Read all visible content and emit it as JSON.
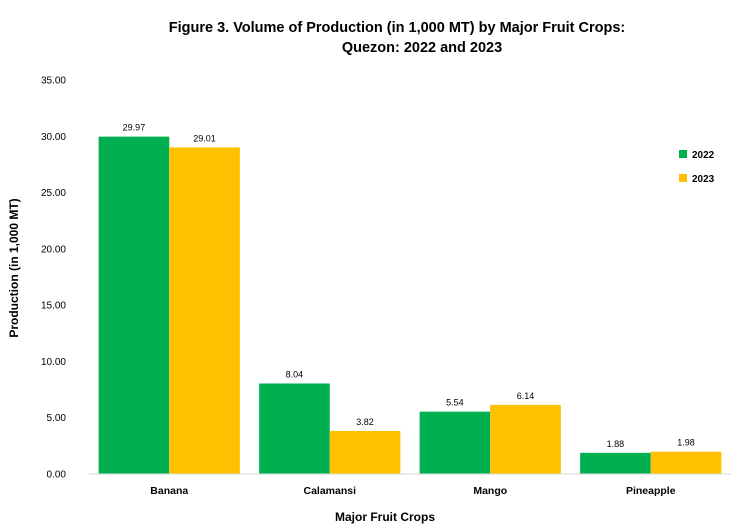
{
  "chart_data": {
    "type": "bar",
    "title_line1": "Figure 3. Volume of Production (in 1,000 MT) by Major Fruit Crops:",
    "title_line2": "Quezon: 2022 and 2023",
    "xlabel": "Major Fruit Crops",
    "ylabel": "Production (in 1,000 MT)",
    "categories": [
      "Banana",
      "Calamansi",
      "Mango",
      "Pineapple"
    ],
    "series": [
      {
        "name": "2022",
        "color": "#00B050",
        "values": [
          29.97,
          8.04,
          5.54,
          1.88
        ],
        "labels": [
          "29.97",
          "8.04",
          "5.54",
          "1.88"
        ]
      },
      {
        "name": "2023",
        "color": "#FFC000",
        "values": [
          29.01,
          3.82,
          6.14,
          1.98
        ],
        "labels": [
          "29.01",
          "3.82",
          "6.14",
          "1.98"
        ]
      }
    ],
    "ylim": [
      0,
      35
    ],
    "yticks": [
      "0.00",
      "5.00",
      "10.00",
      "15.00",
      "20.00",
      "25.00",
      "30.00",
      "35.00"
    ],
    "grid": false,
    "legend_position": "right"
  }
}
